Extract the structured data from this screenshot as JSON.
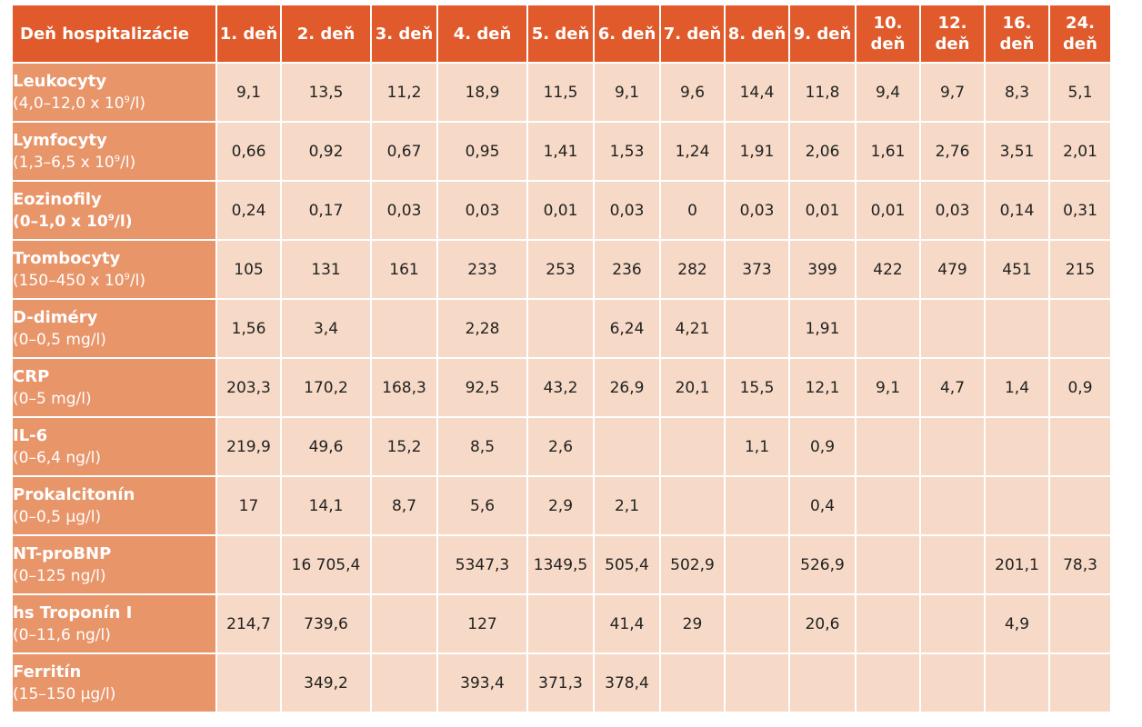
{
  "table": {
    "header_label": "Deň hospitalizácie",
    "days": [
      "1. deň",
      "2. deň",
      "3. deň",
      "4. deň",
      "5. deň",
      "6. deň",
      "7. deň",
      "8. deň",
      "9. deň",
      "10. deň",
      "12. deň",
      "16. deň",
      "24. deň"
    ],
    "rows": [
      {
        "name": "Leukocyty",
        "range": "(4,0–12,0 x 10^9/l)",
        "values": [
          "9,1",
          "13,5",
          "11,2",
          "18,9",
          "11,5",
          "9,1",
          "9,6",
          "14,4",
          "11,8",
          "9,4",
          "9,7",
          "8,3",
          "5,1"
        ]
      },
      {
        "name": "Lymfocyty",
        "range": "(1,3–6,5 x 10^9/l)",
        "values": [
          "0,66",
          "0,92",
          "0,67",
          "0,95",
          "1,41",
          "1,53",
          "1,24",
          "1,91",
          "2,06",
          "1,61",
          "2,76",
          "3,51",
          "2,01"
        ]
      },
      {
        "name": "Eozinofily",
        "range": "(0–1,0 x 10^9/l)",
        "range_bold": true,
        "values": [
          "0,24",
          "0,17",
          "0,03",
          "0,03",
          "0,01",
          "0,03",
          "0",
          "0,03",
          "0,01",
          "0,01",
          "0,03",
          "0,14",
          "0,31"
        ]
      },
      {
        "name": "Trombocyty",
        "range": "(150–450 x 10^9/l)",
        "values": [
          "105",
          "131",
          "161",
          "233",
          "253",
          "236",
          "282",
          "373",
          "399",
          "422",
          "479",
          "451",
          "215"
        ]
      },
      {
        "name": "D-diméry",
        "range": "(0–0,5 mg/l)",
        "values": [
          "1,56",
          "3,4",
          "",
          "2,28",
          "",
          "6,24",
          "4,21",
          "",
          "1,91",
          "",
          "",
          "",
          ""
        ]
      },
      {
        "name": "CRP",
        "range": "(0–5 mg/l)",
        "values": [
          "203,3",
          "170,2",
          "168,3",
          "92,5",
          "43,2",
          "26,9",
          "20,1",
          "15,5",
          "12,1",
          "9,1",
          "4,7",
          "1,4",
          "0,9"
        ]
      },
      {
        "name": "IL-6",
        "range": "(0–6,4 ng/l)",
        "values": [
          "219,9",
          "49,6",
          "15,2",
          "8,5",
          "2,6",
          "",
          "",
          "1,1",
          "0,9",
          "",
          "",
          "",
          ""
        ]
      },
      {
        "name": "Prokalcitonín",
        "range": "(0–0,5 µg/l)",
        "values": [
          "17",
          "14,1",
          "8,7",
          "5,6",
          "2,9",
          "2,1",
          "",
          "",
          "0,4",
          "",
          "",
          "",
          ""
        ]
      },
      {
        "name": "NT-proBNP",
        "range": "(0–125 ng/l)",
        "values": [
          "",
          "16 705,4",
          "",
          "5347,3",
          "1349,5",
          "505,4",
          "502,9",
          "",
          "526,9",
          "",
          "",
          "201,1",
          "78,3"
        ]
      },
      {
        "name": "hs Troponín I",
        "range": "(0–11,6 ng/l)",
        "values": [
          "214,7",
          "739,6",
          "",
          "127",
          "",
          "41,4",
          "29",
          "",
          "20,6",
          "",
          "",
          "4,9",
          ""
        ]
      },
      {
        "name": "Ferritín",
        "range": "(15–150 µg/l)",
        "values": [
          "",
          "349,2",
          "",
          "393,4",
          "371,3",
          "378,4",
          "",
          "",
          "",
          "",
          "",
          "",
          ""
        ]
      }
    ]
  },
  "colors": {
    "header_bg": "#e05a2b",
    "row_header_bg": "#e8956a",
    "cell_bg": "#f6d9c6",
    "header_text": "#ffffff",
    "cell_text": "#222222"
  }
}
